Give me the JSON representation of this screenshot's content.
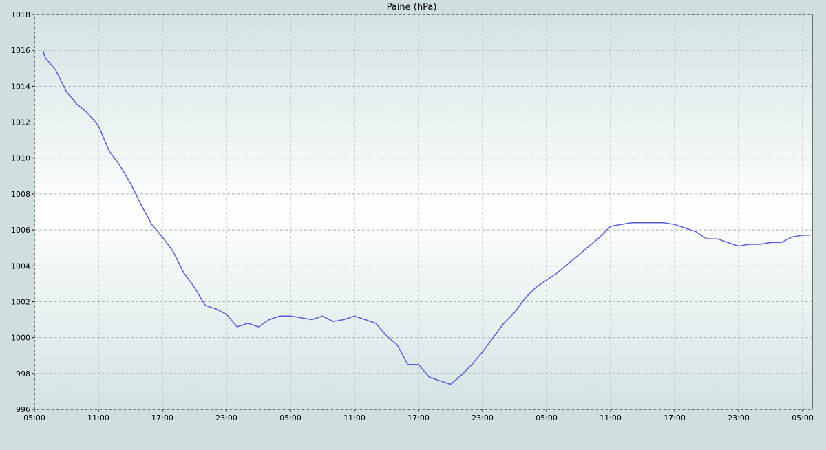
{
  "chart_data": {
    "type": "line",
    "title": "Paine (hPa)",
    "x": [
      0.8,
      1,
      2,
      3,
      4,
      5,
      6,
      7,
      8,
      9,
      10,
      11,
      12,
      13,
      14,
      15,
      16,
      17,
      18,
      19,
      20,
      21,
      22,
      23,
      24,
      25,
      26,
      27,
      28,
      29,
      30,
      31,
      32,
      33,
      34,
      35,
      36,
      37,
      38,
      39,
      40,
      41,
      42,
      43,
      44,
      45,
      46,
      47,
      48,
      49,
      50,
      51,
      52,
      53,
      54,
      55,
      56,
      57,
      58,
      59,
      60,
      61,
      62,
      63,
      64,
      65,
      66,
      67,
      68,
      69,
      70,
      71,
      72,
      72.7
    ],
    "series": [
      {
        "name": "Paine",
        "color": "#5a5adc",
        "values": [
          1016.0,
          1015.6,
          1014.9,
          1013.7,
          1013.0,
          1012.5,
          1011.8,
          1010.4,
          1009.6,
          1008.6,
          1007.4,
          1006.3,
          1005.6,
          1004.8,
          1003.6,
          1002.8,
          1001.8,
          1001.6,
          1001.3,
          1000.6,
          1000.8,
          1000.6,
          1001.0,
          1001.2,
          1001.2,
          1001.1,
          1001.0,
          1001.2,
          1000.9,
          1001.0,
          1001.2,
          1001.0,
          1000.8,
          1000.1,
          999.6,
          998.5,
          998.5,
          997.8,
          997.6,
          997.4,
          997.9,
          998.5,
          999.2,
          1000.0,
          1000.8,
          1001.4,
          1002.2,
          1002.8,
          1003.2,
          1003.6,
          1004.1,
          1004.6,
          1005.1,
          1005.6,
          1006.2,
          1006.3,
          1006.4,
          1006.4,
          1006.4,
          1006.4,
          1006.3,
          1006.1,
          1005.9,
          1005.5,
          1005.5,
          1005.3,
          1005.1,
          1005.2,
          1005.2,
          1005.3,
          1005.3,
          1005.6,
          1005.7,
          1005.7
        ]
      }
    ],
    "xlim": [
      0,
      72.9
    ],
    "xticks": [
      {
        "value": 0,
        "label": "05:00"
      },
      {
        "value": 6,
        "label": "11:00"
      },
      {
        "value": 12,
        "label": "17:00"
      },
      {
        "value": 18,
        "label": "23:00"
      },
      {
        "value": 24,
        "label": "05:00"
      },
      {
        "value": 30,
        "label": "11:00"
      },
      {
        "value": 36,
        "label": "17:00"
      },
      {
        "value": 42,
        "label": "23:00"
      },
      {
        "value": 48,
        "label": "05:00"
      },
      {
        "value": 54,
        "label": "11:00"
      },
      {
        "value": 60,
        "label": "17:00"
      },
      {
        "value": 66,
        "label": "23:00"
      },
      {
        "value": 72,
        "label": "05:00"
      }
    ],
    "ylim": [
      996,
      1018
    ],
    "yticks": [
      996,
      998,
      1000,
      1002,
      1004,
      1006,
      1008,
      1010,
      1012,
      1014,
      1016,
      1018
    ],
    "grid": true
  }
}
